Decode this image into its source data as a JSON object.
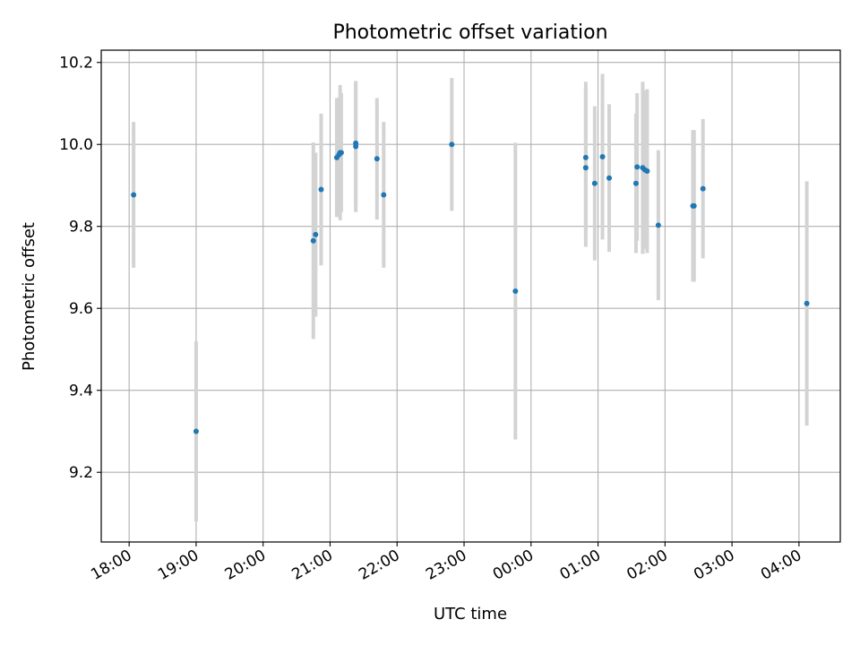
{
  "chart_data": {
    "type": "scatter",
    "title": "Photometric offset variation",
    "xlabel": "UTC time",
    "ylabel": "Photometric offset",
    "grid": true,
    "legend": "none",
    "x_start": "2023-01-01T17:35",
    "x_end": "2023-01-02T04:37",
    "ylim": [
      9.03,
      10.23
    ],
    "x_ticks": [
      {
        "t": "2023-01-01T18:00",
        "label": "18:00"
      },
      {
        "t": "2023-01-01T19:00",
        "label": "19:00"
      },
      {
        "t": "2023-01-01T20:00",
        "label": "20:00"
      },
      {
        "t": "2023-01-01T21:00",
        "label": "21:00"
      },
      {
        "t": "2023-01-01T22:00",
        "label": "22:00"
      },
      {
        "t": "2023-01-01T23:00",
        "label": "23:00"
      },
      {
        "t": "2023-01-02T00:00",
        "label": "00:00"
      },
      {
        "t": "2023-01-02T01:00",
        "label": "01:00"
      },
      {
        "t": "2023-01-02T02:00",
        "label": "02:00"
      },
      {
        "t": "2023-01-02T03:00",
        "label": "03:00"
      },
      {
        "t": "2023-01-02T04:00",
        "label": "04:00"
      }
    ],
    "y_ticks": [
      9.2,
      9.4,
      9.6,
      9.8,
      10.0,
      10.2
    ],
    "y_tick_labels": [
      "9.2",
      "9.4",
      "9.6",
      "9.8",
      "10.0",
      "10.2"
    ],
    "colors": {
      "point": "#1f77b4",
      "errorbar": "#d3d3d3",
      "grid": "#b0b0b0",
      "axes": "#000000"
    },
    "points": [
      {
        "t": "2023-01-01T18:04",
        "y": 9.877,
        "yerr": 0.178
      },
      {
        "t": "2023-01-01T19:00",
        "y": 9.3,
        "yerr": 0.22
      },
      {
        "t": "2023-01-01T20:45",
        "y": 9.765,
        "yerr": 0.24
      },
      {
        "t": "2023-01-01T20:47",
        "y": 9.78,
        "yerr": 0.2
      },
      {
        "t": "2023-01-01T20:52",
        "y": 9.89,
        "yerr": 0.185
      },
      {
        "t": "2023-01-01T21:06",
        "y": 9.968,
        "yerr": 0.145
      },
      {
        "t": "2023-01-01T21:08",
        "y": 9.975,
        "yerr": 0.14
      },
      {
        "t": "2023-01-01T21:09",
        "y": 9.98,
        "yerr": 0.165
      },
      {
        "t": "2023-01-01T21:10",
        "y": 9.98,
        "yerr": 0.145
      },
      {
        "t": "2023-01-01T21:23",
        "y": 9.995,
        "yerr": 0.16
      },
      {
        "t": "2023-01-01T21:23",
        "y": 10.003,
        "yerr": 0.15
      },
      {
        "t": "2023-01-01T21:42",
        "y": 9.965,
        "yerr": 0.148
      },
      {
        "t": "2023-01-01T21:48",
        "y": 9.877,
        "yerr": 0.178
      },
      {
        "t": "2023-01-01T22:49",
        "y": 10.0,
        "yerr": 0.162
      },
      {
        "t": "2023-01-01T23:46",
        "y": 9.642,
        "yerr": 0.362
      },
      {
        "t": "2023-01-02T00:49",
        "y": 9.968,
        "yerr": 0.185
      },
      {
        "t": "2023-01-02T00:49",
        "y": 9.943,
        "yerr": 0.193
      },
      {
        "t": "2023-01-02T00:57",
        "y": 9.905,
        "yerr": 0.188
      },
      {
        "t": "2023-01-02T01:04",
        "y": 9.97,
        "yerr": 0.202
      },
      {
        "t": "2023-01-02T01:10",
        "y": 9.918,
        "yerr": 0.18
      },
      {
        "t": "2023-01-02T01:34",
        "y": 9.905,
        "yerr": 0.17
      },
      {
        "t": "2023-01-02T01:35",
        "y": 9.945,
        "yerr": 0.18
      },
      {
        "t": "2023-01-02T01:40",
        "y": 9.943,
        "yerr": 0.21
      },
      {
        "t": "2023-01-02T01:42",
        "y": 9.938,
        "yerr": 0.193
      },
      {
        "t": "2023-01-02T01:44",
        "y": 9.935,
        "yerr": 0.2
      },
      {
        "t": "2023-01-02T01:54",
        "y": 9.803,
        "yerr": 0.183
      },
      {
        "t": "2023-01-02T02:25",
        "y": 9.85,
        "yerr": 0.185
      },
      {
        "t": "2023-01-02T02:26",
        "y": 9.85,
        "yerr": 0.185
      },
      {
        "t": "2023-01-02T02:34",
        "y": 9.892,
        "yerr": 0.17
      },
      {
        "t": "2023-01-02T04:07",
        "y": 9.612,
        "yerr": 0.298
      }
    ]
  }
}
